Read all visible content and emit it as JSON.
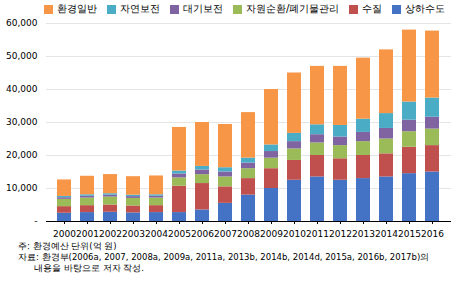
{
  "chart_data": {
    "type": "bar",
    "stacked": true,
    "categories": [
      "2000",
      "2001",
      "2002",
      "2003",
      "2004",
      "2005",
      "2006",
      "2007",
      "2008",
      "2009",
      "2010",
      "2011",
      "2012",
      "2013",
      "2014",
      "2015",
      "2016"
    ],
    "series": [
      {
        "name": "상하수도",
        "color": "#4472C4",
        "values": [
          2500,
          2700,
          2800,
          2600,
          2700,
          2700,
          3500,
          5500,
          8000,
          10000,
          12500,
          13500,
          12500,
          13000,
          13500,
          14500,
          15000
        ]
      },
      {
        "name": "수질",
        "color": "#C0504D",
        "values": [
          2000,
          2100,
          2200,
          2100,
          2100,
          8000,
          8000,
          5000,
          5000,
          6000,
          6000,
          6500,
          6500,
          7000,
          7000,
          8000,
          8000
        ]
      },
      {
        "name": "자원순환/폐기물관리",
        "color": "#9BBB59",
        "values": [
          2200,
          2300,
          2400,
          2300,
          2300,
          2500,
          2700,
          3000,
          3000,
          3200,
          3500,
          3800,
          4000,
          4200,
          4500,
          4700,
          5000
        ]
      },
      {
        "name": "대기보전",
        "color": "#8064A2",
        "values": [
          500,
          550,
          560,
          540,
          550,
          1200,
          1400,
          1500,
          1700,
          2000,
          2200,
          2500,
          2600,
          2800,
          3200,
          3500,
          3600
        ]
      },
      {
        "name": "자연보전",
        "color": "#4BACC6",
        "values": [
          400,
          450,
          460,
          440,
          450,
          900,
          1100,
          1300,
          1500,
          2000,
          2500,
          3000,
          3500,
          4000,
          4500,
          5500,
          5800
        ]
      },
      {
        "name": "환경일반",
        "color": "#F79646",
        "values": [
          5000,
          5600,
          5800,
          5600,
          5700,
          13200,
          13300,
          13100,
          13800,
          16800,
          18300,
          17700,
          17900,
          18500,
          19300,
          21800,
          20300
        ]
      }
    ],
    "ylim": [
      0,
      60000
    ],
    "yticks": [
      {
        "value": 0,
        "label": "-"
      },
      {
        "value": 10000,
        "label": "10,000"
      },
      {
        "value": 20000,
        "label": "20,000"
      },
      {
        "value": 30000,
        "label": "30,000"
      },
      {
        "value": 40000,
        "label": "40,000"
      },
      {
        "value": 50000,
        "label": "50,000"
      },
      {
        "value": 60000,
        "label": "60,000"
      }
    ],
    "grid": true,
    "legend": "upper left",
    "annotations": [
      "주: 환경예산 단위(억 원)",
      "자료: 환경부(2006a, 2007, 2008a, 2009a, 2011a, 2013b, 2014b, 2014d, 2015a, 2016b, 2017b)의",
      "      내용을 바탕으로 저자 작성."
    ]
  }
}
